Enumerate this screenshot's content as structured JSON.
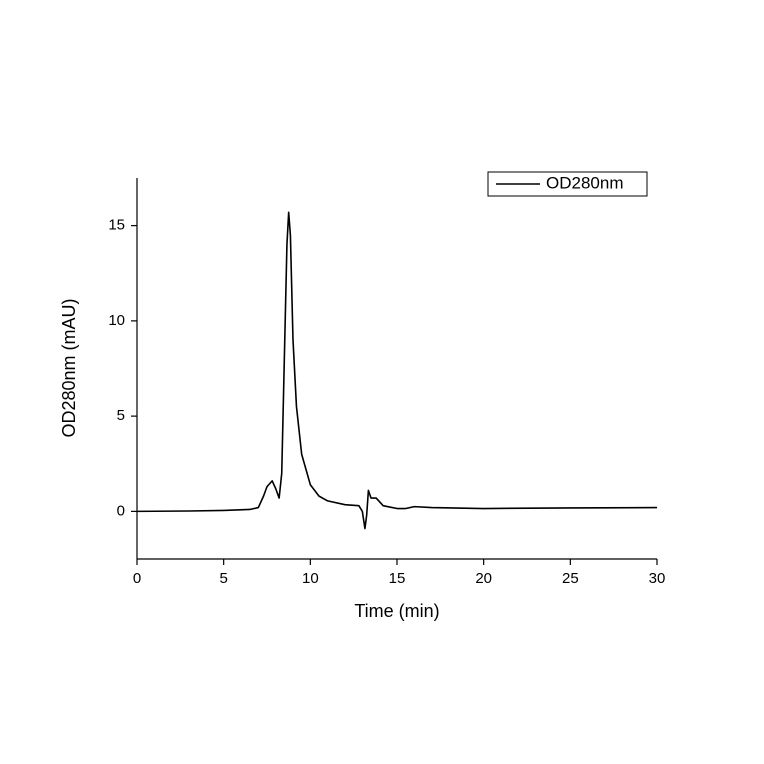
{
  "chart_data": {
    "type": "line",
    "x_label": "Time (min)",
    "y_label": "OD280nm (mAU)",
    "x": [
      0,
      3,
      5,
      6.5,
      7,
      7.3,
      7.5,
      7.8,
      8.0,
      8.2,
      8.35,
      8.5,
      8.65,
      8.75,
      8.85,
      9.0,
      9.2,
      9.5,
      10.0,
      10.5,
      11,
      12,
      12.8,
      13.0,
      13.15,
      13.25,
      13.35,
      13.5,
      13.8,
      14.2,
      15,
      15.5,
      16,
      17,
      20,
      25,
      30
    ],
    "series": [
      {
        "name": "OD280nm",
        "color": "#000000",
        "values": [
          0,
          0.02,
          0.05,
          0.1,
          0.2,
          0.8,
          1.3,
          1.6,
          1.2,
          0.7,
          2,
          8,
          14,
          15.7,
          14.5,
          9,
          5.5,
          3,
          1.4,
          0.8,
          0.55,
          0.35,
          0.3,
          0,
          -0.9,
          -0.2,
          1.1,
          0.7,
          0.7,
          0.3,
          0.15,
          0.15,
          0.25,
          0.2,
          0.15,
          0.18,
          0.2
        ]
      }
    ],
    "xlim": [
      0,
      30
    ],
    "xticks": [
      0,
      5,
      10,
      15,
      20,
      25,
      30
    ],
    "ylim": [
      -2.5,
      17.5
    ],
    "yticks": [
      0,
      5,
      10,
      15
    ],
    "legend": "upper right",
    "grid": false
  }
}
